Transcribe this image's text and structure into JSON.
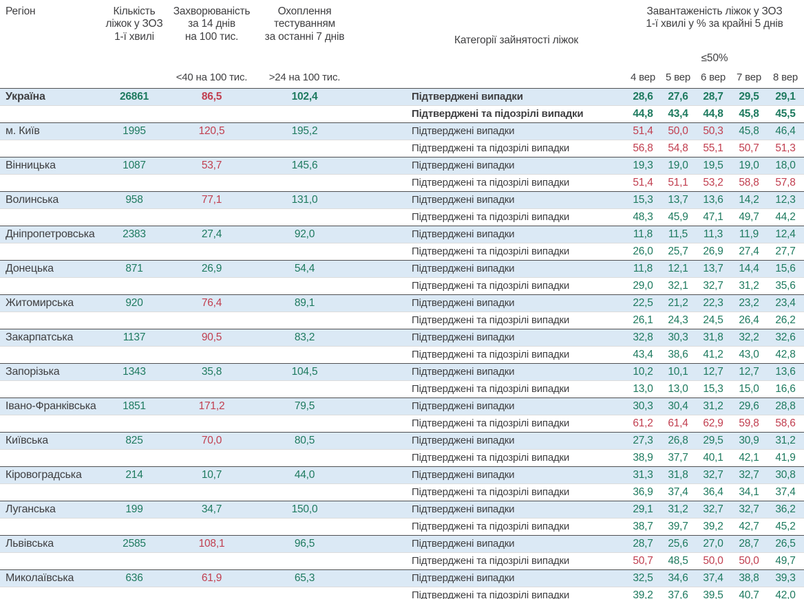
{
  "colors": {
    "green": "#1e7a5f",
    "red": "#c13e4f",
    "row_bg": "#dbe9f5",
    "text": "#3f3f41",
    "bottom_bar": "#2e403d"
  },
  "chart_data": {
    "type": "table",
    "headers": {
      "region": "Регіон",
      "beds": "Кількість\nліжок у ЗОЗ\n1-ї хвилі",
      "incidence": "Захворюваність\nза 14 днів\nна 100 тис.",
      "testing": "Охоплення\nтестуванням\nза останні 7 днів",
      "category": "Категорії зайнятості ліжок",
      "occupancy": "Завантаженість ліжок у ЗОЗ\n1-ї хвилі у % за крайні 5 днів",
      "incidence_threshold": "<40 на 100 тис.",
      "testing_threshold": ">24 на 100 тис.",
      "occupancy_threshold": "≤50%",
      "dates": [
        "4 вер",
        "5 вер",
        "6 вер",
        "7 вер",
        "8 вер"
      ]
    },
    "category_labels": {
      "confirmed": "Підтверджені випадки",
      "suspected": "Підтверджені та підозрілі випадки"
    },
    "regions": [
      {
        "name": "Україна",
        "bold": true,
        "beds": "26861",
        "incidence": {
          "v": "86,5",
          "c": "r"
        },
        "testing": {
          "v": "102,4",
          "c": "g"
        },
        "confirmed": {
          "values": [
            "28,6",
            "27,6",
            "28,7",
            "29,5",
            "29,1"
          ],
          "colors": [
            "g",
            "g",
            "g",
            "g",
            "g"
          ]
        },
        "suspected": {
          "values": [
            "44,8",
            "43,4",
            "44,8",
            "45,8",
            "45,5"
          ],
          "colors": [
            "g",
            "g",
            "g",
            "g",
            "g"
          ]
        }
      },
      {
        "name": "м. Київ",
        "bold": false,
        "beds": "1995",
        "incidence": {
          "v": "120,5",
          "c": "r"
        },
        "testing": {
          "v": "195,2",
          "c": "g"
        },
        "confirmed": {
          "values": [
            "51,4",
            "50,0",
            "50,3",
            "45,8",
            "46,4"
          ],
          "colors": [
            "r",
            "r",
            "r",
            "g",
            "g"
          ]
        },
        "suspected": {
          "values": [
            "56,8",
            "54,8",
            "55,1",
            "50,7",
            "51,3"
          ],
          "colors": [
            "r",
            "r",
            "r",
            "r",
            "r"
          ]
        }
      },
      {
        "name": "Вінницька",
        "bold": false,
        "beds": "1087",
        "incidence": {
          "v": "53,7",
          "c": "r"
        },
        "testing": {
          "v": "145,6",
          "c": "g"
        },
        "confirmed": {
          "values": [
            "19,3",
            "19,0",
            "19,5",
            "19,0",
            "18,0"
          ],
          "colors": [
            "g",
            "g",
            "g",
            "g",
            "g"
          ]
        },
        "suspected": {
          "values": [
            "51,4",
            "51,1",
            "53,2",
            "58,8",
            "57,8"
          ],
          "colors": [
            "r",
            "r",
            "r",
            "r",
            "r"
          ]
        }
      },
      {
        "name": "Волинська",
        "bold": false,
        "beds": "958",
        "incidence": {
          "v": "77,1",
          "c": "r"
        },
        "testing": {
          "v": "131,0",
          "c": "g"
        },
        "confirmed": {
          "values": [
            "15,3",
            "13,7",
            "13,6",
            "14,2",
            "12,3"
          ],
          "colors": [
            "g",
            "g",
            "g",
            "g",
            "g"
          ]
        },
        "suspected": {
          "values": [
            "48,3",
            "45,9",
            "47,1",
            "49,7",
            "44,2"
          ],
          "colors": [
            "g",
            "g",
            "g",
            "g",
            "g"
          ]
        }
      },
      {
        "name": "Дніпропетровська",
        "bold": false,
        "beds": "2383",
        "incidence": {
          "v": "27,4",
          "c": "g"
        },
        "testing": {
          "v": "92,0",
          "c": "g"
        },
        "confirmed": {
          "values": [
            "11,8",
            "11,5",
            "11,3",
            "11,9",
            "12,4"
          ],
          "colors": [
            "g",
            "g",
            "g",
            "g",
            "g"
          ]
        },
        "suspected": {
          "values": [
            "26,0",
            "25,7",
            "26,9",
            "27,4",
            "27,7"
          ],
          "colors": [
            "g",
            "g",
            "g",
            "g",
            "g"
          ]
        }
      },
      {
        "name": "Донецька",
        "bold": false,
        "beds": "871",
        "incidence": {
          "v": "26,9",
          "c": "g"
        },
        "testing": {
          "v": "54,4",
          "c": "g"
        },
        "confirmed": {
          "values": [
            "11,8",
            "12,1",
            "13,7",
            "14,4",
            "15,6"
          ],
          "colors": [
            "g",
            "g",
            "g",
            "g",
            "g"
          ]
        },
        "suspected": {
          "values": [
            "29,0",
            "32,1",
            "32,7",
            "31,2",
            "35,6"
          ],
          "colors": [
            "g",
            "g",
            "g",
            "g",
            "g"
          ]
        }
      },
      {
        "name": "Житомирська",
        "bold": false,
        "beds": "920",
        "incidence": {
          "v": "76,4",
          "c": "r"
        },
        "testing": {
          "v": "89,1",
          "c": "g"
        },
        "confirmed": {
          "values": [
            "22,5",
            "21,2",
            "22,3",
            "23,2",
            "23,4"
          ],
          "colors": [
            "g",
            "g",
            "g",
            "g",
            "g"
          ]
        },
        "suspected": {
          "values": [
            "26,1",
            "24,3",
            "24,5",
            "26,4",
            "26,2"
          ],
          "colors": [
            "g",
            "g",
            "g",
            "g",
            "g"
          ]
        }
      },
      {
        "name": "Закарпатська",
        "bold": false,
        "beds": "1137",
        "incidence": {
          "v": "90,5",
          "c": "r"
        },
        "testing": {
          "v": "83,2",
          "c": "g"
        },
        "confirmed": {
          "values": [
            "32,8",
            "30,3",
            "31,8",
            "32,2",
            "32,6"
          ],
          "colors": [
            "g",
            "g",
            "g",
            "g",
            "g"
          ]
        },
        "suspected": {
          "values": [
            "43,4",
            "38,6",
            "41,2",
            "43,0",
            "42,8"
          ],
          "colors": [
            "g",
            "g",
            "g",
            "g",
            "g"
          ]
        }
      },
      {
        "name": "Запорізька",
        "bold": false,
        "beds": "1343",
        "incidence": {
          "v": "35,8",
          "c": "g"
        },
        "testing": {
          "v": "104,5",
          "c": "g"
        },
        "confirmed": {
          "values": [
            "10,2",
            "10,1",
            "12,7",
            "12,7",
            "13,6"
          ],
          "colors": [
            "g",
            "g",
            "g",
            "g",
            "g"
          ]
        },
        "suspected": {
          "values": [
            "13,0",
            "13,0",
            "15,3",
            "15,0",
            "16,6"
          ],
          "colors": [
            "g",
            "g",
            "g",
            "g",
            "g"
          ]
        }
      },
      {
        "name": "Івано-Франківська",
        "bold": false,
        "beds": "1851",
        "incidence": {
          "v": "171,2",
          "c": "r"
        },
        "testing": {
          "v": "79,5",
          "c": "g"
        },
        "confirmed": {
          "values": [
            "30,3",
            "30,4",
            "31,2",
            "29,6",
            "28,8"
          ],
          "colors": [
            "g",
            "g",
            "g",
            "g",
            "g"
          ]
        },
        "suspected": {
          "values": [
            "61,2",
            "61,4",
            "62,9",
            "59,8",
            "58,6"
          ],
          "colors": [
            "r",
            "r",
            "r",
            "r",
            "r"
          ]
        }
      },
      {
        "name": "Київська",
        "bold": false,
        "beds": "825",
        "incidence": {
          "v": "70,0",
          "c": "r"
        },
        "testing": {
          "v": "80,5",
          "c": "g"
        },
        "confirmed": {
          "values": [
            "27,3",
            "26,8",
            "29,5",
            "30,9",
            "31,2"
          ],
          "colors": [
            "g",
            "g",
            "g",
            "g",
            "g"
          ]
        },
        "suspected": {
          "values": [
            "38,9",
            "37,7",
            "40,1",
            "42,1",
            "41,9"
          ],
          "colors": [
            "g",
            "g",
            "g",
            "g",
            "g"
          ]
        }
      },
      {
        "name": "Кіровоградська",
        "bold": false,
        "beds": "214",
        "incidence": {
          "v": "10,7",
          "c": "g"
        },
        "testing": {
          "v": "44,0",
          "c": "g"
        },
        "confirmed": {
          "values": [
            "31,3",
            "31,8",
            "32,7",
            "32,7",
            "30,8"
          ],
          "colors": [
            "g",
            "g",
            "g",
            "g",
            "g"
          ]
        },
        "suspected": {
          "values": [
            "36,9",
            "37,4",
            "36,4",
            "34,1",
            "37,4"
          ],
          "colors": [
            "g",
            "g",
            "g",
            "g",
            "g"
          ]
        }
      },
      {
        "name": "Луганська",
        "bold": false,
        "beds": "199",
        "incidence": {
          "v": "34,7",
          "c": "g"
        },
        "testing": {
          "v": "150,0",
          "c": "g"
        },
        "confirmed": {
          "values": [
            "29,1",
            "31,2",
            "32,7",
            "32,7",
            "36,2"
          ],
          "colors": [
            "g",
            "g",
            "g",
            "g",
            "g"
          ]
        },
        "suspected": {
          "values": [
            "38,7",
            "39,7",
            "39,2",
            "42,7",
            "45,2"
          ],
          "colors": [
            "g",
            "g",
            "g",
            "g",
            "g"
          ]
        }
      },
      {
        "name": "Львівська",
        "bold": false,
        "beds": "2585",
        "incidence": {
          "v": "108,1",
          "c": "r"
        },
        "testing": {
          "v": "96,5",
          "c": "g"
        },
        "confirmed": {
          "values": [
            "28,7",
            "25,6",
            "27,0",
            "28,7",
            "26,5"
          ],
          "colors": [
            "g",
            "g",
            "g",
            "g",
            "g"
          ]
        },
        "suspected": {
          "values": [
            "50,7",
            "48,5",
            "50,0",
            "50,0",
            "49,7"
          ],
          "colors": [
            "r",
            "g",
            "r",
            "r",
            "g"
          ]
        }
      },
      {
        "name": "Миколаївська",
        "bold": false,
        "beds": "636",
        "incidence": {
          "v": "61,9",
          "c": "r"
        },
        "testing": {
          "v": "65,3",
          "c": "g"
        },
        "confirmed": {
          "values": [
            "32,5",
            "34,6",
            "37,4",
            "38,8",
            "39,3"
          ],
          "colors": [
            "g",
            "g",
            "g",
            "g",
            "g"
          ]
        },
        "suspected": {
          "values": [
            "39,2",
            "37,6",
            "39,5",
            "40,7",
            "42,0"
          ],
          "colors": [
            "g",
            "g",
            "g",
            "g",
            "g"
          ]
        }
      }
    ]
  }
}
